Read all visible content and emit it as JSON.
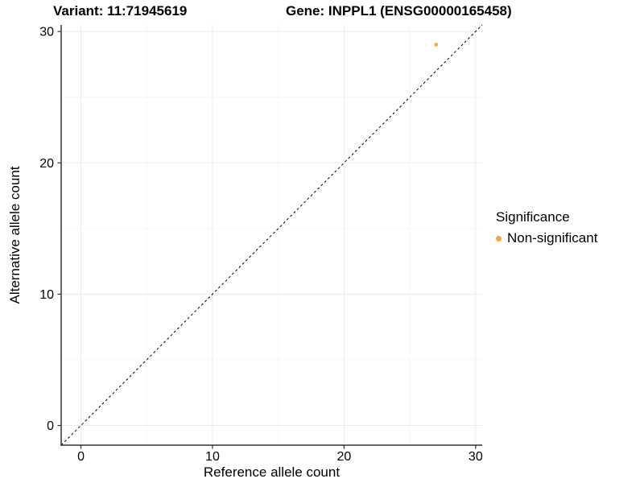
{
  "titles": {
    "variant": "Variant: 11:71945619",
    "gene": "Gene: INPPL1 (ENSG00000165458)"
  },
  "legend": {
    "title": "Significance",
    "items": [
      {
        "label": "Non-significant",
        "color": "#FAA43A",
        "marker": "circle-icon"
      }
    ]
  },
  "chart_data": {
    "type": "scatter",
    "title": "Variant: 11:71945619    Gene: INPPL1 (ENSG00000165458)",
    "xlabel": "Reference allele count",
    "ylabel": "Alternative allele count",
    "xlim": [
      -1.5,
      30.5
    ],
    "ylim": [
      -1.5,
      30.5
    ],
    "x_ticks": [
      0,
      10,
      20,
      30
    ],
    "y_ticks": [
      0,
      10,
      20,
      30
    ],
    "x_minor_ticks": [
      5,
      15,
      25
    ],
    "y_minor_ticks": [
      5,
      15,
      25
    ],
    "grid": "on",
    "legend_position": "right-middle",
    "series": [
      {
        "name": "Non-significant",
        "color": "#FAA43A",
        "marker": "circle",
        "points": [
          {
            "x": 27,
            "y": 29
          }
        ]
      }
    ],
    "reference_line": {
      "kind": "identity y=x",
      "style": "dashed",
      "color": "#000000",
      "from": [
        -1.5,
        -1.5
      ],
      "to": [
        30.5,
        30.5
      ]
    },
    "theme": {
      "background": "#FFFFFF",
      "grid_major": "#EBEBEB",
      "grid_minor": "#F5F5F5",
      "axis_line": "#333333",
      "tick_color": "#333333",
      "text_color": "#000000"
    }
  }
}
